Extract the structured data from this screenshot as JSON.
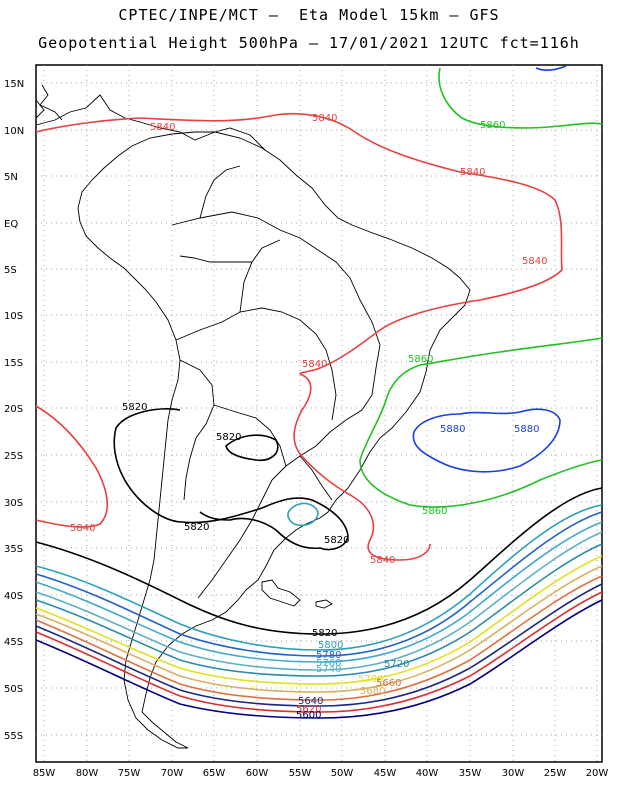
{
  "header": {
    "line1": "CPTEC/INPE/MCT –  Eta Model 15km – GFS",
    "line2": "Geopotential Height 500hPa – 17/01/2021 12UTC fct=116h"
  },
  "axes": {
    "lat_labels": [
      "15N",
      "10N",
      "5N",
      "EQ",
      "5S",
      "10S",
      "15S",
      "20S",
      "25S",
      "30S",
      "35S",
      "40S",
      "45S",
      "50S",
      "55S"
    ],
    "lon_labels": [
      "85W",
      "80W",
      "75W",
      "70W",
      "65W",
      "60W",
      "55W",
      "50W",
      "45W",
      "40W",
      "35W",
      "30W",
      "25W",
      "20W"
    ]
  },
  "contours": {
    "colors": {
      "5820": "#000000",
      "5840": "#e84040",
      "5860": "#22c022",
      "5880": "#1a3ee0",
      "5800": "#2aa0b8",
      "5780": "#2060c8",
      "5760": "#40a8d0",
      "5740": "#5fb0c0",
      "5720": "#2a8ca8",
      "5700": "#e0e020",
      "5680": "#d8b060",
      "5660": "#e07040",
      "5640": "#1a2a80",
      "5620": "#d83030",
      "5600": "#000080"
    },
    "labels": [
      {
        "text": "5840",
        "color": "#e84040"
      },
      {
        "text": "5840",
        "color": "#e84040"
      },
      {
        "text": "5840",
        "color": "#e84040"
      },
      {
        "text": "5840",
        "color": "#e84040"
      },
      {
        "text": "5840",
        "color": "#e84040"
      },
      {
        "text": "5840",
        "color": "#e84040"
      },
      {
        "text": "5840",
        "color": "#e84040"
      },
      {
        "text": "5860",
        "color": "#22c022"
      },
      {
        "text": "5860",
        "color": "#22c022"
      },
      {
        "text": "5860",
        "color": "#22c022"
      },
      {
        "text": "5880",
        "color": "#1a3ee0"
      },
      {
        "text": "5880",
        "color": "#1a3ee0"
      },
      {
        "text": "5820",
        "color": "#000000"
      },
      {
        "text": "5820",
        "color": "#000000"
      },
      {
        "text": "5820",
        "color": "#000000"
      },
      {
        "text": "5820",
        "color": "#000000"
      },
      {
        "text": "5820",
        "color": "#000000"
      },
      {
        "text": "5800",
        "color": "#2aa0b8"
      },
      {
        "text": "5780",
        "color": "#2060c8"
      },
      {
        "text": "5760",
        "color": "#40a8d0"
      },
      {
        "text": "5740",
        "color": "#5fb0c0"
      },
      {
        "text": "5720",
        "color": "#2a8ca8"
      },
      {
        "text": "5700",
        "color": "#e0e020"
      },
      {
        "text": "5680",
        "color": "#d8b060"
      },
      {
        "text": "5660",
        "color": "#e07040"
      },
      {
        "text": "5640",
        "color": "#1a2a80"
      },
      {
        "text": "5620",
        "color": "#d83030"
      },
      {
        "text": "5600",
        "color": "#000080"
      }
    ]
  }
}
